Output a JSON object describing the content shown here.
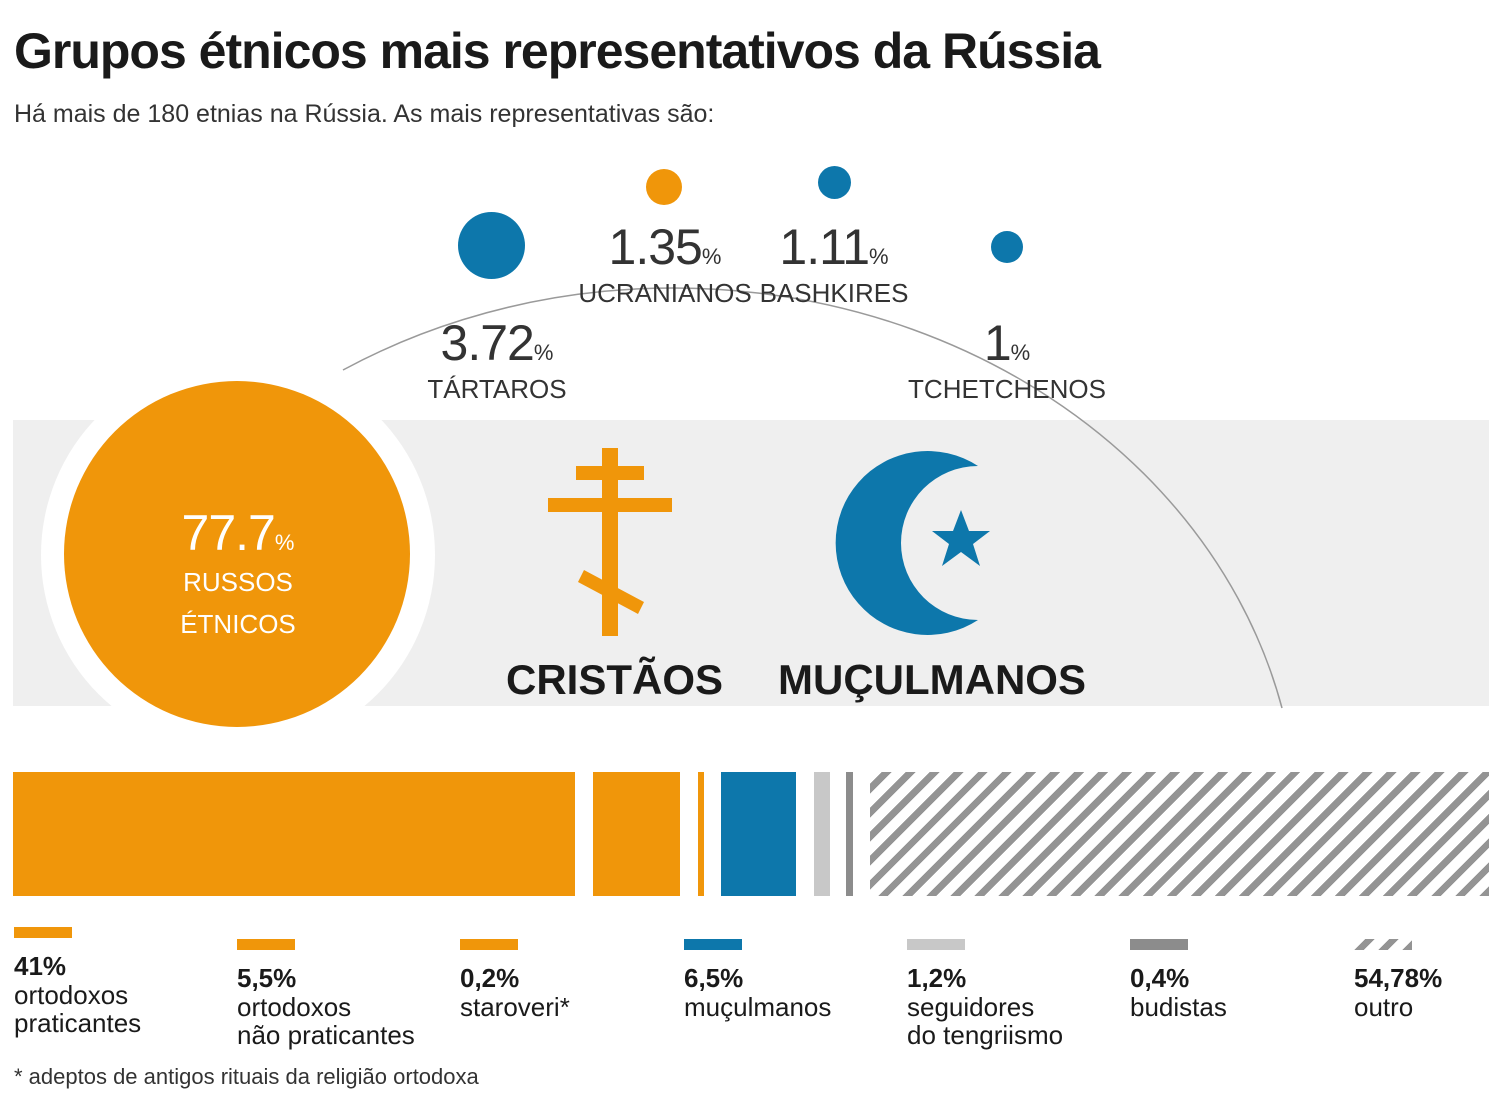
{
  "title": "Grupos étnicos mais representativos da Rússia",
  "subtitle": "Há mais de 180 etnias na Rússia. As mais representativas são:",
  "colors": {
    "orange": "#f0960a",
    "blue": "#0d77ab",
    "light_gray": "#c8c8c8",
    "dark_gray": "#8c8c8c",
    "band": "#efefef"
  },
  "ethnic_groups": [
    {
      "value": "77.7",
      "unit": "%",
      "label_line1": "RUSSOS",
      "label_line2": "ÉTNICOS",
      "color": "orange"
    },
    {
      "value": "3.72",
      "unit": "%",
      "label": "TÁRTAROS",
      "color": "blue"
    },
    {
      "value": "1.35",
      "unit": "%",
      "label": "UCRANIANOS",
      "color": "orange"
    },
    {
      "value": "1.11",
      "unit": "%",
      "label": "BASHKIRES",
      "color": "blue"
    },
    {
      "value": "1",
      "unit": "%",
      "label": "TCHETCHENOS",
      "color": "blue"
    }
  ],
  "religions": {
    "christian_label": "CRISTÃOS",
    "muslim_label": "MUÇULMANOS",
    "christian_icon": "orthodox-cross-icon",
    "muslim_icon": "crescent-star-icon"
  },
  "chart_data": [
    {
      "type": "scatter",
      "title": "Grupos étnicos mais representativos da Rússia",
      "categories": [
        "RUSSOS ÉTNICOS",
        "TÁRTAROS",
        "UCRANIANOS",
        "BASHKIRES",
        "TCHETCHENOS"
      ],
      "values": [
        77.7,
        3.72,
        1.35,
        1.11,
        1
      ],
      "unit": "%"
    },
    {
      "type": "bar",
      "orientation": "stacked-horizontal",
      "categories": [
        "ortodoxos praticantes",
        "ortodoxos não praticantes",
        "staroveri*",
        "muçulmanos",
        "seguidores do tengriismo",
        "budistas",
        "outro"
      ],
      "values": [
        41,
        5.5,
        0.2,
        6.5,
        1.2,
        0.4,
        54.78
      ],
      "unit": "%"
    }
  ],
  "legend": [
    {
      "pct": "41%",
      "line1": "ortodoxos",
      "line2": "praticantes",
      "color": "orange",
      "hatched": false
    },
    {
      "pct": "5,5%",
      "line1": "ortodoxos",
      "line2": "não praticantes",
      "color": "orange",
      "hatched": false
    },
    {
      "pct": "0,2%",
      "line1": "staroveri*",
      "line2": "",
      "color": "orange",
      "hatched": false
    },
    {
      "pct": "6,5%",
      "line1": "muçulmanos",
      "line2": "",
      "color": "blue",
      "hatched": false
    },
    {
      "pct": "1,2%",
      "line1": "seguidores",
      "line2": "do tengriismo",
      "color": "light_gray",
      "hatched": false
    },
    {
      "pct": "0,4%",
      "line1": "budistas",
      "line2": "",
      "color": "dark_gray",
      "hatched": false
    },
    {
      "pct": "54,78%",
      "line1": "outro",
      "line2": "",
      "color": "dark_gray",
      "hatched": true
    }
  ],
  "footnote": "* adeptos de antigos rituais da religião ortodoxa"
}
